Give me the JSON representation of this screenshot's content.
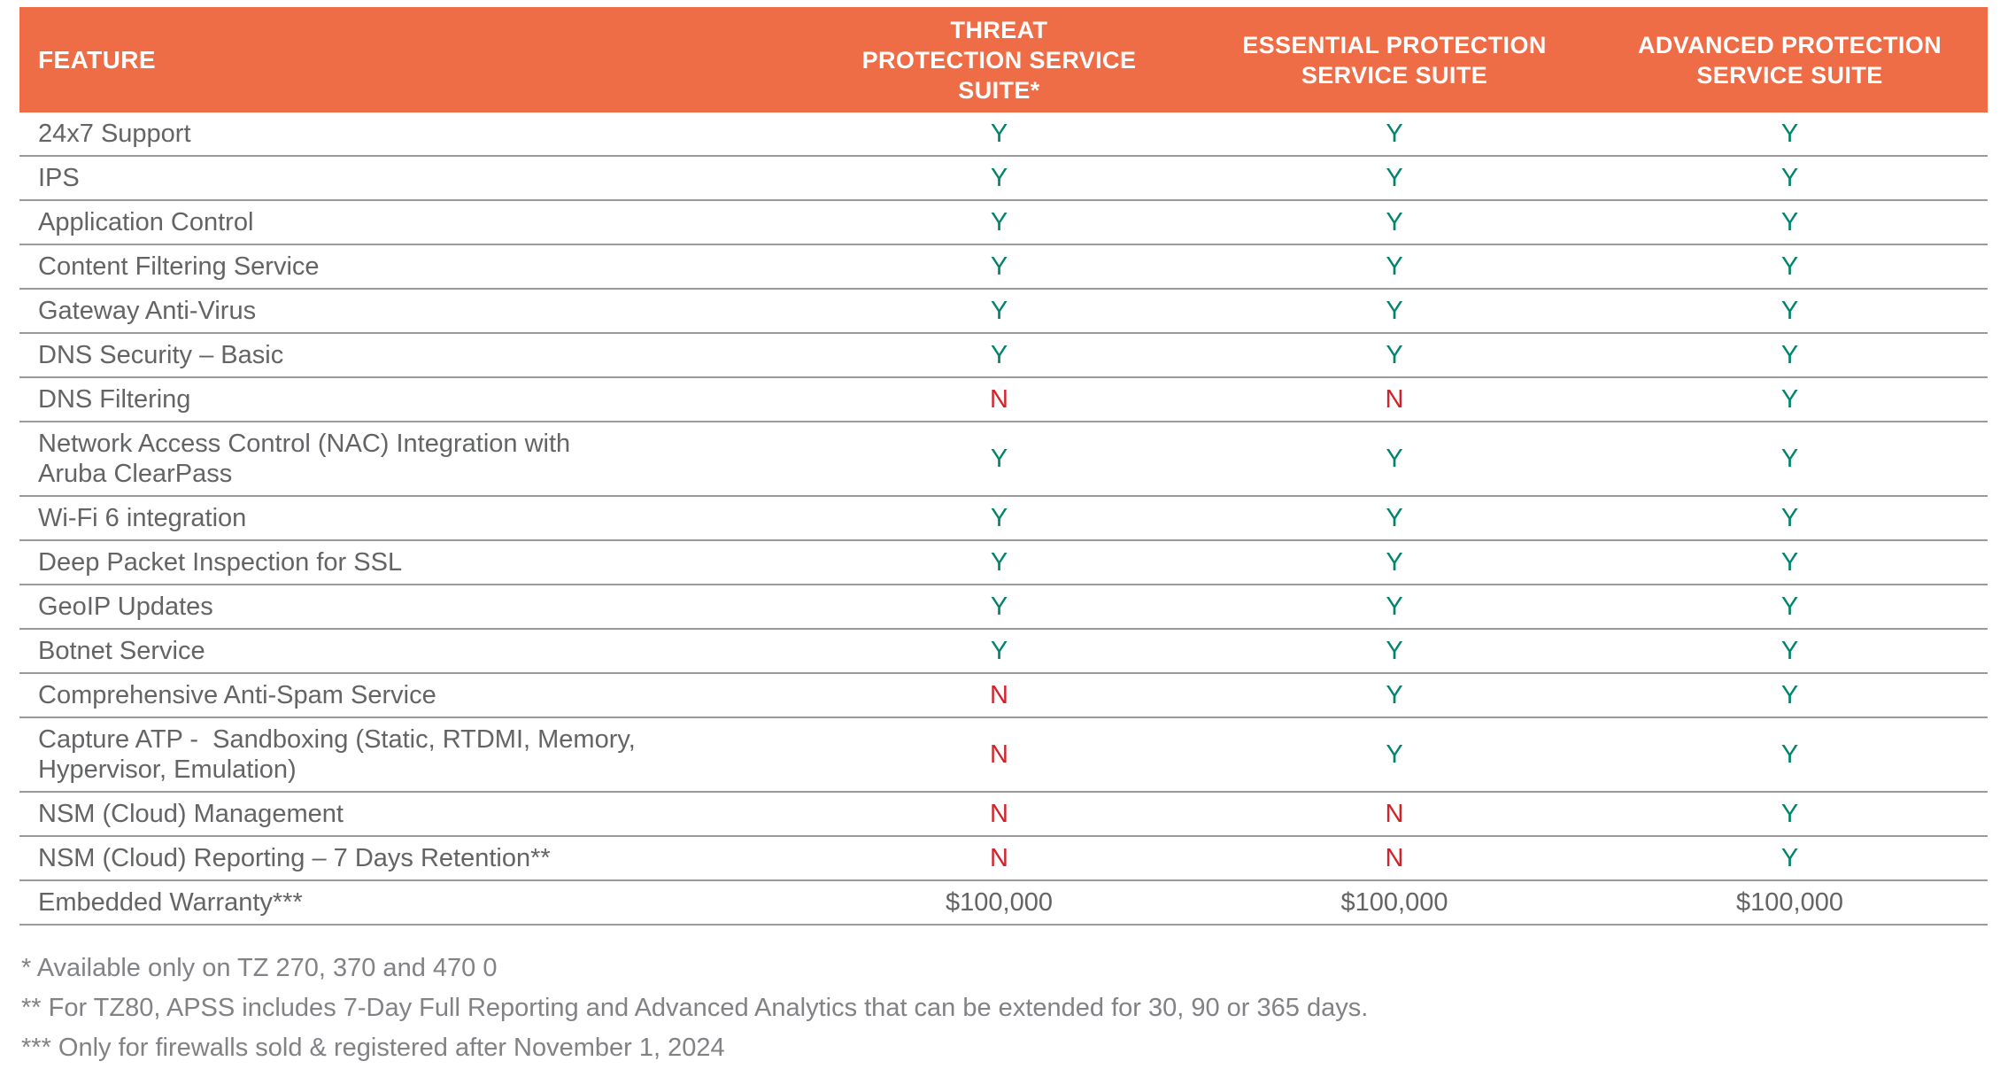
{
  "colors": {
    "header_bg": "#EE6C46",
    "header_text": "#FFFFFF",
    "yes": "#00846C",
    "no": "#D2232A",
    "text": "#636466",
    "footnote_text": "#818285",
    "divider": "#9A9A9A",
    "page_bg": "#FFFFFF"
  },
  "table": {
    "header": {
      "feature_label": "FEATURE",
      "columns": [
        {
          "label": "THREAT\nPROTECTION SERVICE\nSUITE*"
        },
        {
          "label": "ESSENTIAL PROTECTION\nSERVICE SUITE"
        },
        {
          "label": "ADVANCED PROTECTION\nSERVICE SUITE"
        }
      ]
    },
    "rows": [
      {
        "feature": "24x7 Support",
        "values": [
          "Y",
          "Y",
          "Y"
        ]
      },
      {
        "feature": "IPS",
        "values": [
          "Y",
          "Y",
          "Y"
        ]
      },
      {
        "feature": "Application Control",
        "values": [
          "Y",
          "Y",
          "Y"
        ]
      },
      {
        "feature": "Content Filtering Service",
        "values": [
          "Y",
          "Y",
          "Y"
        ]
      },
      {
        "feature": "Gateway Anti-Virus",
        "values": [
          "Y",
          "Y",
          "Y"
        ]
      },
      {
        "feature": "DNS Security – Basic",
        "values": [
          "Y",
          "Y",
          "Y"
        ]
      },
      {
        "feature": "DNS Filtering",
        "values": [
          "N",
          "N",
          "Y"
        ]
      },
      {
        "feature": "Network Access Control (NAC) Integration with\nAruba ClearPass",
        "values": [
          "Y",
          "Y",
          "Y"
        ]
      },
      {
        "feature": "Wi-Fi 6 integration",
        "values": [
          "Y",
          "Y",
          "Y"
        ]
      },
      {
        "feature": "Deep Packet Inspection for SSL",
        "values": [
          "Y",
          "Y",
          "Y"
        ]
      },
      {
        "feature": "GeoIP Updates",
        "values": [
          "Y",
          "Y",
          "Y"
        ]
      },
      {
        "feature": "Botnet Service",
        "values": [
          "Y",
          "Y",
          "Y"
        ]
      },
      {
        "feature": "Comprehensive Anti-Spam Service",
        "values": [
          "N",
          "Y",
          "Y"
        ]
      },
      {
        "feature": "Capture ATP -  Sandboxing (Static, RTDMI, Memory,\nHypervisor, Emulation)",
        "values": [
          "N",
          "Y",
          "Y"
        ]
      },
      {
        "feature": "NSM (Cloud) Management",
        "values": [
          "N",
          "N",
          "Y"
        ]
      },
      {
        "feature": "NSM (Cloud) Reporting – 7 Days Retention**",
        "values": [
          "N",
          "N",
          "Y"
        ]
      },
      {
        "feature": "Embedded Warranty***",
        "values": [
          "$100,000",
          "$100,000",
          "$100,000"
        ]
      }
    ]
  },
  "footnotes": [
    "* Available only on TZ 270, 370 and 470 0",
    "** For TZ80, APSS includes 7-Day Full Reporting and Advanced Analytics that can be extended for 30, 90 or 365 days.",
    "*** Only for firewalls sold & registered after November 1, 2024"
  ]
}
